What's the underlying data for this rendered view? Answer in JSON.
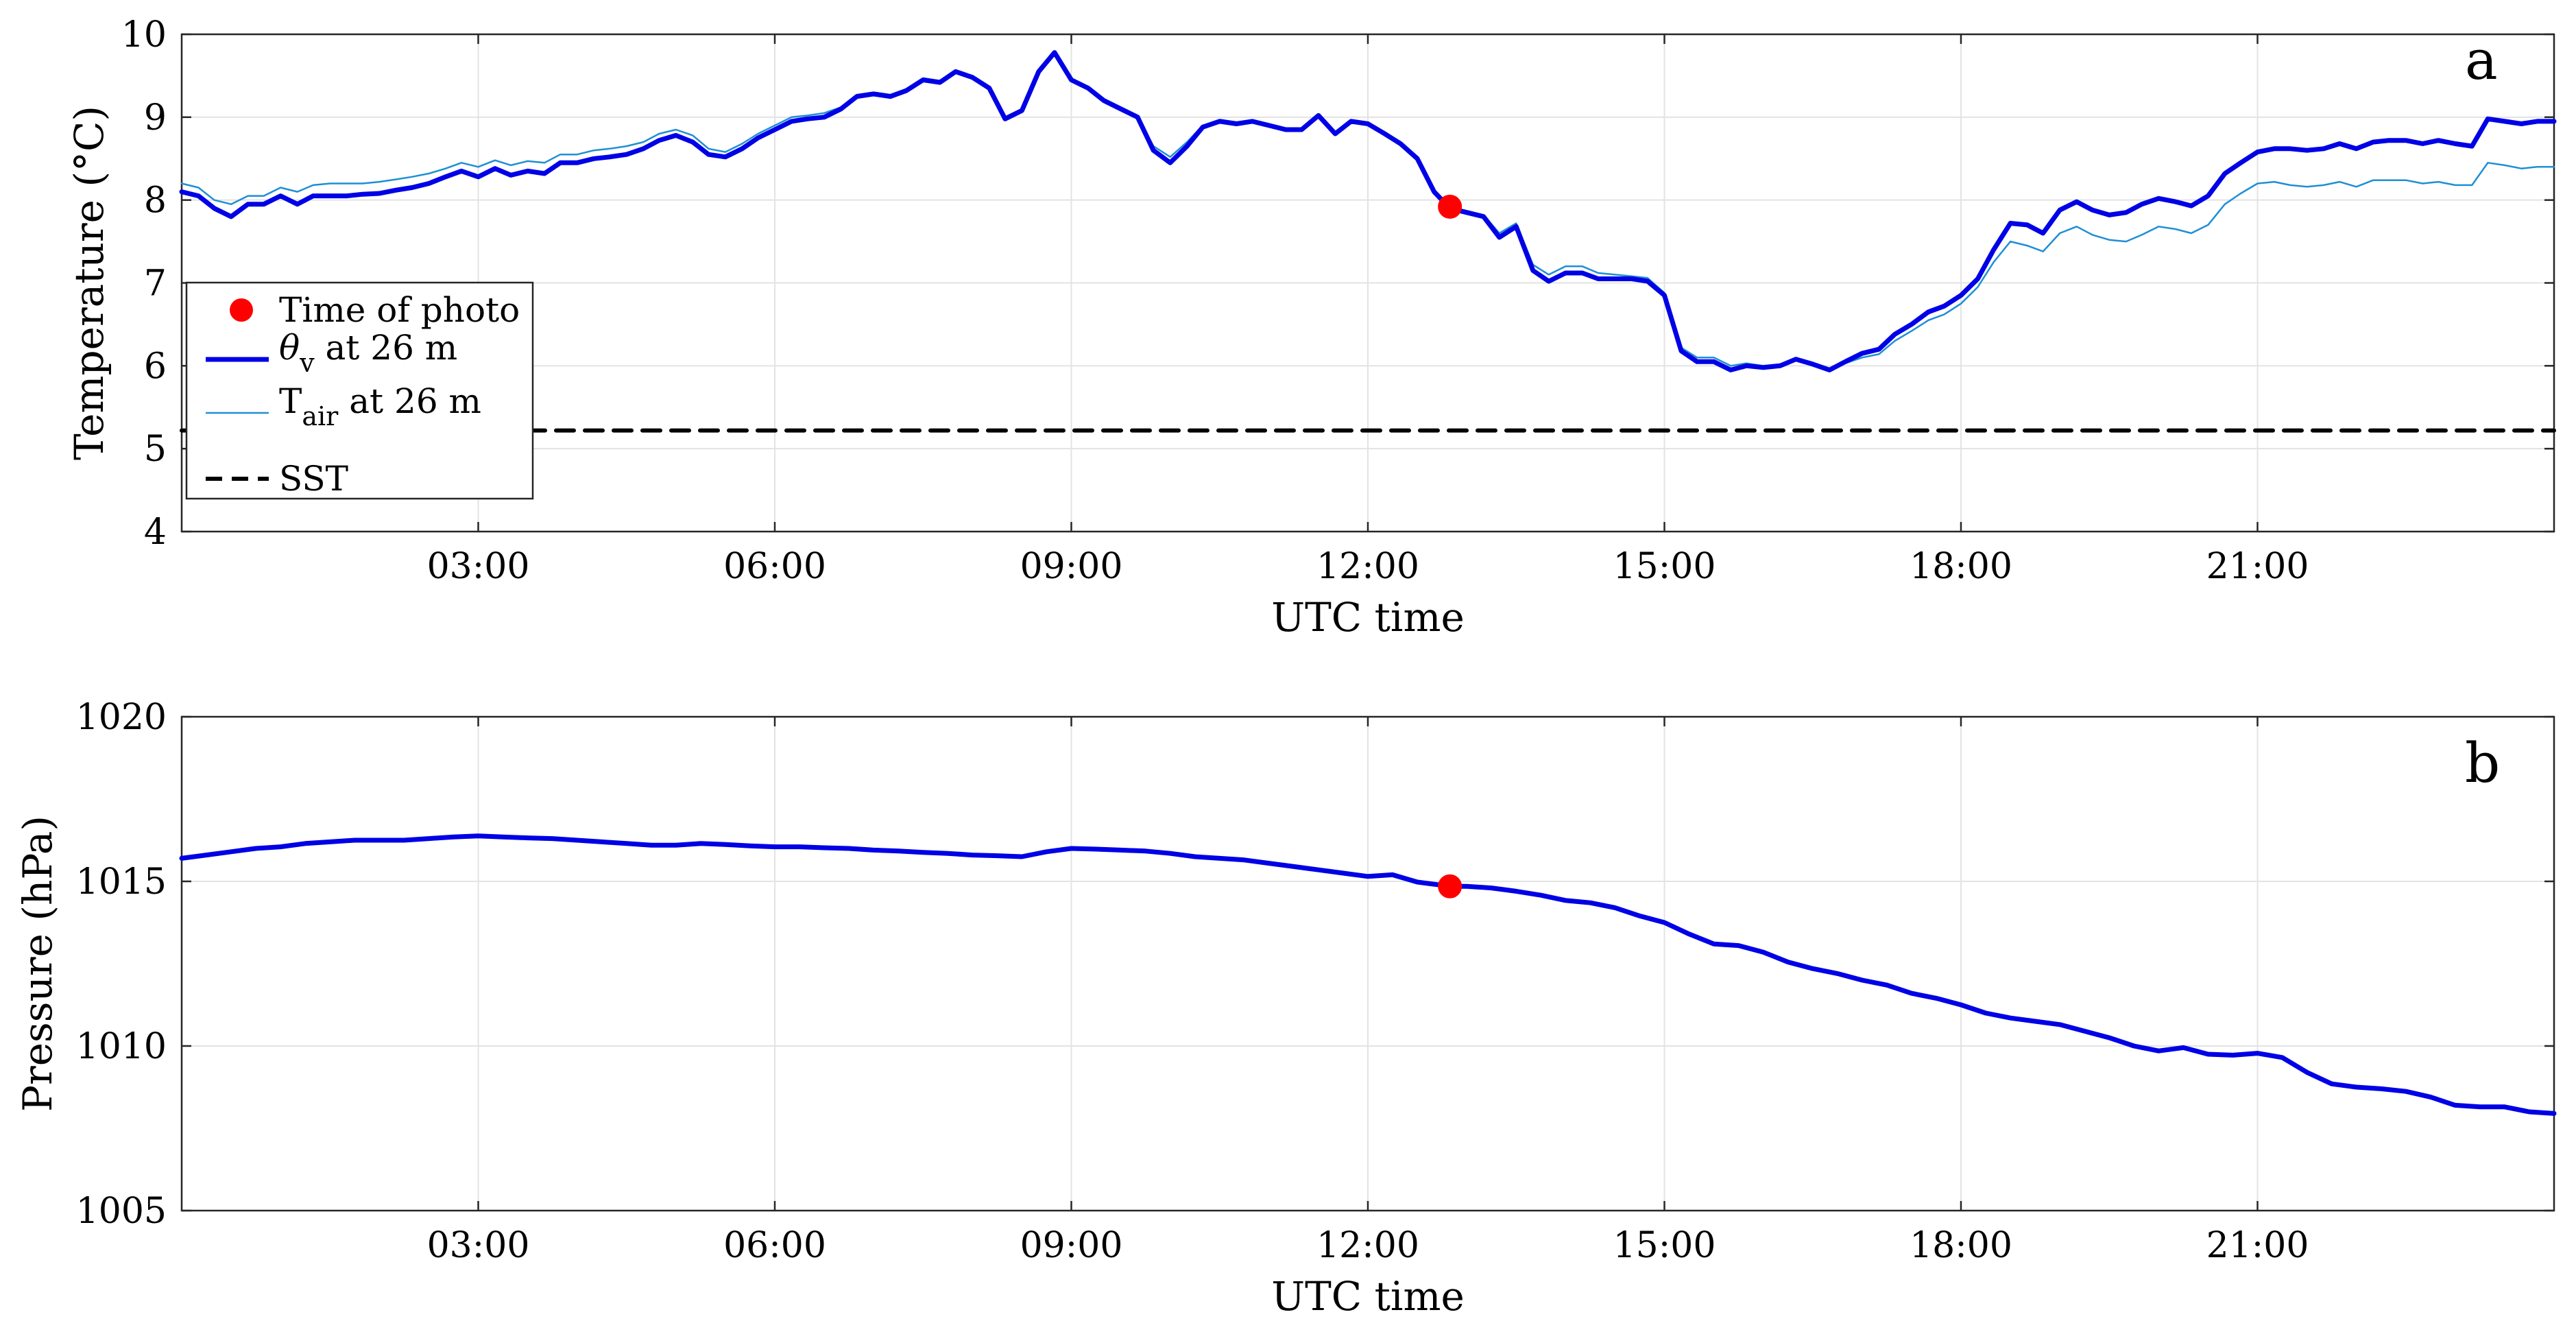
{
  "chart_data": [
    {
      "type": "line",
      "panel_label": "a",
      "xlabel": "UTC time",
      "ylabel": "Temperature (°C)",
      "xlim": [
        0,
        24
      ],
      "ylim": [
        4,
        10
      ],
      "xticks": [
        3,
        6,
        9,
        12,
        15,
        18,
        21
      ],
      "xtick_labels": [
        "03:00",
        "06:00",
        "09:00",
        "12:00",
        "15:00",
        "18:00",
        "21:00"
      ],
      "yticks": [
        4,
        5,
        6,
        7,
        8,
        9,
        10
      ],
      "ytick_labels": [
        "4",
        "5",
        "6",
        "7",
        "8",
        "9",
        "10"
      ],
      "grid": true,
      "legend_position": "lower-left",
      "series": [
        {
          "name": "θv at 26 m",
          "label_main": "θ",
          "label_sub": "v",
          "label_rest": " at 26 m",
          "color": "#0000e6",
          "style": "thick",
          "x": [
            0.0,
            0.17,
            0.33,
            0.5,
            0.67,
            0.83,
            1.0,
            1.17,
            1.33,
            1.5,
            1.67,
            1.83,
            2.0,
            2.17,
            2.33,
            2.5,
            2.67,
            2.83,
            3.0,
            3.17,
            3.33,
            3.5,
            3.67,
            3.83,
            4.0,
            4.17,
            4.33,
            4.5,
            4.67,
            4.83,
            5.0,
            5.17,
            5.33,
            5.5,
            5.67,
            5.83,
            6.0,
            6.17,
            6.33,
            6.5,
            6.67,
            6.83,
            7.0,
            7.17,
            7.33,
            7.5,
            7.67,
            7.83,
            8.0,
            8.17,
            8.33,
            8.5,
            8.67,
            8.83,
            9.0,
            9.17,
            9.33,
            9.5,
            9.67,
            9.83,
            10.0,
            10.17,
            10.33,
            10.5,
            10.67,
            10.83,
            11.0,
            11.17,
            11.33,
            11.5,
            11.67,
            11.83,
            12.0,
            12.17,
            12.33,
            12.5,
            12.67,
            12.83,
            13.0,
            13.17,
            13.33,
            13.5,
            13.67,
            13.83,
            14.0,
            14.17,
            14.33,
            14.5,
            14.67,
            14.83,
            15.0,
            15.17,
            15.33,
            15.5,
            15.67,
            15.83,
            16.0,
            16.17,
            16.33,
            16.5,
            16.67,
            16.83,
            17.0,
            17.17,
            17.33,
            17.5,
            17.67,
            17.83,
            18.0,
            18.17,
            18.33,
            18.5,
            18.67,
            18.83,
            19.0,
            19.17,
            19.33,
            19.5,
            19.67,
            19.83,
            20.0,
            20.17,
            20.33,
            20.5,
            20.67,
            20.83,
            21.0,
            21.17,
            21.33,
            21.5,
            21.67,
            21.83,
            22.0,
            22.17,
            22.33,
            22.5,
            22.67,
            22.83,
            23.0,
            23.17,
            23.33,
            23.5,
            23.67,
            23.83,
            24.0
          ],
          "y": [
            8.1,
            8.05,
            7.9,
            7.8,
            7.95,
            7.95,
            8.05,
            7.95,
            8.05,
            8.05,
            8.05,
            8.07,
            8.08,
            8.12,
            8.15,
            8.2,
            8.28,
            8.35,
            8.28,
            8.38,
            8.3,
            8.35,
            8.32,
            8.45,
            8.45,
            8.5,
            8.52,
            8.55,
            8.62,
            8.72,
            8.78,
            8.7,
            8.55,
            8.52,
            8.62,
            8.75,
            8.85,
            8.95,
            8.98,
            9.0,
            9.1,
            9.25,
            9.28,
            9.25,
            9.32,
            9.45,
            9.42,
            9.55,
            9.48,
            9.35,
            8.98,
            9.08,
            9.55,
            9.78,
            9.45,
            9.35,
            9.2,
            9.1,
            9.0,
            8.6,
            8.45,
            8.65,
            8.88,
            8.95,
            8.92,
            8.95,
            8.9,
            8.85,
            8.85,
            9.02,
            8.8,
            8.95,
            8.92,
            8.8,
            8.68,
            8.5,
            8.1,
            7.9,
            7.85,
            7.8,
            7.55,
            7.68,
            7.15,
            7.02,
            7.12,
            7.12,
            7.05,
            7.05,
            7.05,
            7.02,
            6.85,
            6.18,
            6.05,
            6.05,
            5.95,
            6.0,
            5.98,
            6.0,
            6.08,
            6.02,
            5.95,
            6.05,
            6.15,
            6.2,
            6.38,
            6.5,
            6.65,
            6.72,
            6.85,
            7.05,
            7.4,
            7.72,
            7.7,
            7.6,
            7.88,
            7.98,
            7.88,
            7.82,
            7.85,
            7.95,
            8.02,
            7.98,
            7.93,
            8.05,
            8.32,
            8.45,
            8.58,
            8.62,
            8.62,
            8.6,
            8.62,
            8.68,
            8.62,
            8.7,
            8.72,
            8.72,
            8.68,
            8.72,
            8.68,
            8.65,
            8.98,
            8.95,
            8.92,
            8.95,
            8.95
          ]
        },
        {
          "name": "Tair at 26 m",
          "label_main": "T",
          "label_sub": "air",
          "label_rest": " at 26 m",
          "color": "#1f8fd6",
          "style": "thin",
          "x": [
            0.0,
            0.17,
            0.33,
            0.5,
            0.67,
            0.83,
            1.0,
            1.17,
            1.33,
            1.5,
            1.67,
            1.83,
            2.0,
            2.17,
            2.33,
            2.5,
            2.67,
            2.83,
            3.0,
            3.17,
            3.33,
            3.5,
            3.67,
            3.83,
            4.0,
            4.17,
            4.33,
            4.5,
            4.67,
            4.83,
            5.0,
            5.17,
            5.33,
            5.5,
            5.67,
            5.83,
            6.0,
            6.17,
            6.33,
            6.5,
            6.67,
            6.83,
            7.0,
            7.17,
            7.33,
            7.5,
            7.67,
            7.83,
            8.0,
            8.17,
            8.33,
            8.5,
            8.67,
            8.83,
            9.0,
            9.17,
            9.33,
            9.5,
            9.67,
            9.83,
            10.0,
            10.17,
            10.33,
            10.5,
            10.67,
            10.83,
            11.0,
            11.17,
            11.33,
            11.5,
            11.67,
            11.83,
            12.0,
            12.17,
            12.33,
            12.5,
            12.67,
            12.83,
            13.0,
            13.17,
            13.33,
            13.5,
            13.67,
            13.83,
            14.0,
            14.17,
            14.33,
            14.5,
            14.67,
            14.83,
            15.0,
            15.17,
            15.33,
            15.5,
            15.67,
            15.83,
            16.0,
            16.17,
            16.33,
            16.5,
            16.67,
            16.83,
            17.0,
            17.17,
            17.33,
            17.5,
            17.67,
            17.83,
            18.0,
            18.17,
            18.33,
            18.5,
            18.67,
            18.83,
            19.0,
            19.17,
            19.33,
            19.5,
            19.67,
            19.83,
            20.0,
            20.17,
            20.33,
            20.5,
            20.67,
            20.83,
            21.0,
            21.17,
            21.33,
            21.5,
            21.67,
            21.83,
            22.0,
            22.17,
            22.33,
            22.5,
            22.67,
            22.83,
            23.0,
            23.17,
            23.33,
            23.5,
            23.67,
            23.83,
            24.0
          ],
          "y": [
            8.2,
            8.15,
            8.0,
            7.95,
            8.05,
            8.05,
            8.15,
            8.1,
            8.18,
            8.2,
            8.2,
            8.2,
            8.22,
            8.25,
            8.28,
            8.32,
            8.38,
            8.45,
            8.4,
            8.48,
            8.42,
            8.47,
            8.45,
            8.55,
            8.55,
            8.6,
            8.62,
            8.65,
            8.7,
            8.8,
            8.85,
            8.78,
            8.62,
            8.58,
            8.68,
            8.8,
            8.9,
            9.0,
            9.02,
            9.05,
            9.12,
            9.27,
            9.3,
            9.27,
            9.34,
            9.47,
            9.44,
            9.56,
            9.5,
            9.37,
            9.0,
            9.1,
            9.56,
            9.78,
            9.46,
            9.36,
            9.22,
            9.12,
            9.02,
            8.65,
            8.52,
            8.7,
            8.9,
            8.97,
            8.94,
            8.96,
            8.91,
            8.86,
            8.86,
            9.02,
            8.82,
            8.96,
            8.93,
            8.81,
            8.7,
            8.52,
            8.12,
            7.92,
            7.87,
            7.82,
            7.6,
            7.72,
            7.22,
            7.1,
            7.2,
            7.2,
            7.12,
            7.1,
            7.08,
            7.06,
            6.88,
            6.22,
            6.1,
            6.1,
            6.0,
            6.03,
            6.0,
            6.02,
            6.08,
            6.02,
            5.95,
            6.03,
            6.1,
            6.14,
            6.3,
            6.42,
            6.55,
            6.62,
            6.75,
            6.95,
            7.25,
            7.5,
            7.45,
            7.38,
            7.6,
            7.68,
            7.58,
            7.52,
            7.5,
            7.58,
            7.68,
            7.65,
            7.6,
            7.7,
            7.95,
            8.08,
            8.2,
            8.22,
            8.18,
            8.16,
            8.18,
            8.22,
            8.16,
            8.24,
            8.24,
            8.24,
            8.2,
            8.22,
            8.18,
            8.18,
            8.45,
            8.42,
            8.38,
            8.4,
            8.4
          ]
        },
        {
          "name": "SST",
          "color": "#000000",
          "style": "dashed",
          "x": [
            0,
            24
          ],
          "y": [
            5.22,
            5.22
          ]
        }
      ],
      "markers": [
        {
          "name": "Time of photo",
          "color": "#ff0000",
          "x": 12.83,
          "y": 7.92
        }
      ]
    },
    {
      "type": "line",
      "panel_label": "b",
      "xlabel": "UTC time",
      "ylabel": "Pressure (hPa)",
      "xlim": [
        0,
        24
      ],
      "ylim": [
        1005,
        1020
      ],
      "xticks": [
        3,
        6,
        9,
        12,
        15,
        18,
        21
      ],
      "xtick_labels": [
        "03:00",
        "06:00",
        "09:00",
        "12:00",
        "15:00",
        "18:00",
        "21:00"
      ],
      "yticks": [
        1005,
        1010,
        1015,
        1020
      ],
      "ytick_labels": [
        "1005",
        "1010",
        "1015",
        "1020"
      ],
      "grid": true,
      "series": [
        {
          "name": "",
          "color": "#0000e6",
          "style": "thick",
          "x": [
            0.0,
            0.25,
            0.5,
            0.75,
            1.0,
            1.25,
            1.5,
            1.75,
            2.0,
            2.25,
            2.5,
            2.75,
            3.0,
            3.25,
            3.5,
            3.75,
            4.0,
            4.25,
            4.5,
            4.75,
            5.0,
            5.25,
            5.5,
            5.75,
            6.0,
            6.25,
            6.5,
            6.75,
            7.0,
            7.25,
            7.5,
            7.75,
            8.0,
            8.25,
            8.5,
            8.75,
            9.0,
            9.25,
            9.5,
            9.75,
            10.0,
            10.25,
            10.5,
            10.75,
            11.0,
            11.25,
            11.5,
            11.75,
            12.0,
            12.25,
            12.5,
            12.83,
            13.0,
            13.25,
            13.5,
            13.75,
            14.0,
            14.25,
            14.5,
            14.75,
            15.0,
            15.25,
            15.5,
            15.75,
            16.0,
            16.25,
            16.5,
            16.75,
            17.0,
            17.25,
            17.5,
            17.75,
            18.0,
            18.25,
            18.5,
            18.75,
            19.0,
            19.25,
            19.5,
            19.75,
            20.0,
            20.25,
            20.5,
            20.75,
            21.0,
            21.25,
            21.5,
            21.75,
            22.0,
            22.25,
            22.5,
            22.75,
            23.0,
            23.25,
            23.5,
            23.75,
            24.0
          ],
          "y": [
            1015.7,
            1015.8,
            1015.9,
            1016.0,
            1016.05,
            1016.15,
            1016.2,
            1016.25,
            1016.25,
            1016.25,
            1016.3,
            1016.35,
            1016.38,
            1016.35,
            1016.32,
            1016.3,
            1016.25,
            1016.2,
            1016.15,
            1016.1,
            1016.1,
            1016.15,
            1016.12,
            1016.08,
            1016.05,
            1016.05,
            1016.02,
            1016.0,
            1015.95,
            1015.92,
            1015.88,
            1015.85,
            1015.8,
            1015.78,
            1015.75,
            1015.9,
            1016.0,
            1015.98,
            1015.95,
            1015.92,
            1015.85,
            1015.75,
            1015.7,
            1015.65,
            1015.55,
            1015.45,
            1015.35,
            1015.25,
            1015.15,
            1015.2,
            1014.98,
            1014.85,
            1014.85,
            1014.8,
            1014.7,
            1014.58,
            1014.42,
            1014.35,
            1014.2,
            1013.95,
            1013.75,
            1013.4,
            1013.1,
            1013.05,
            1012.85,
            1012.55,
            1012.35,
            1012.2,
            1012.0,
            1011.85,
            1011.6,
            1011.45,
            1011.25,
            1011.0,
            1010.85,
            1010.75,
            1010.65,
            1010.45,
            1010.25,
            1010.0,
            1009.85,
            1009.95,
            1009.75,
            1009.72,
            1009.78,
            1009.65,
            1009.2,
            1008.85,
            1008.75,
            1008.7,
            1008.62,
            1008.45,
            1008.2,
            1008.15,
            1008.15,
            1008.0,
            1007.95
          ]
        }
      ],
      "markers": [
        {
          "name": "Time of photo",
          "color": "#ff0000",
          "x": 12.83,
          "y": 1014.85
        }
      ]
    }
  ]
}
